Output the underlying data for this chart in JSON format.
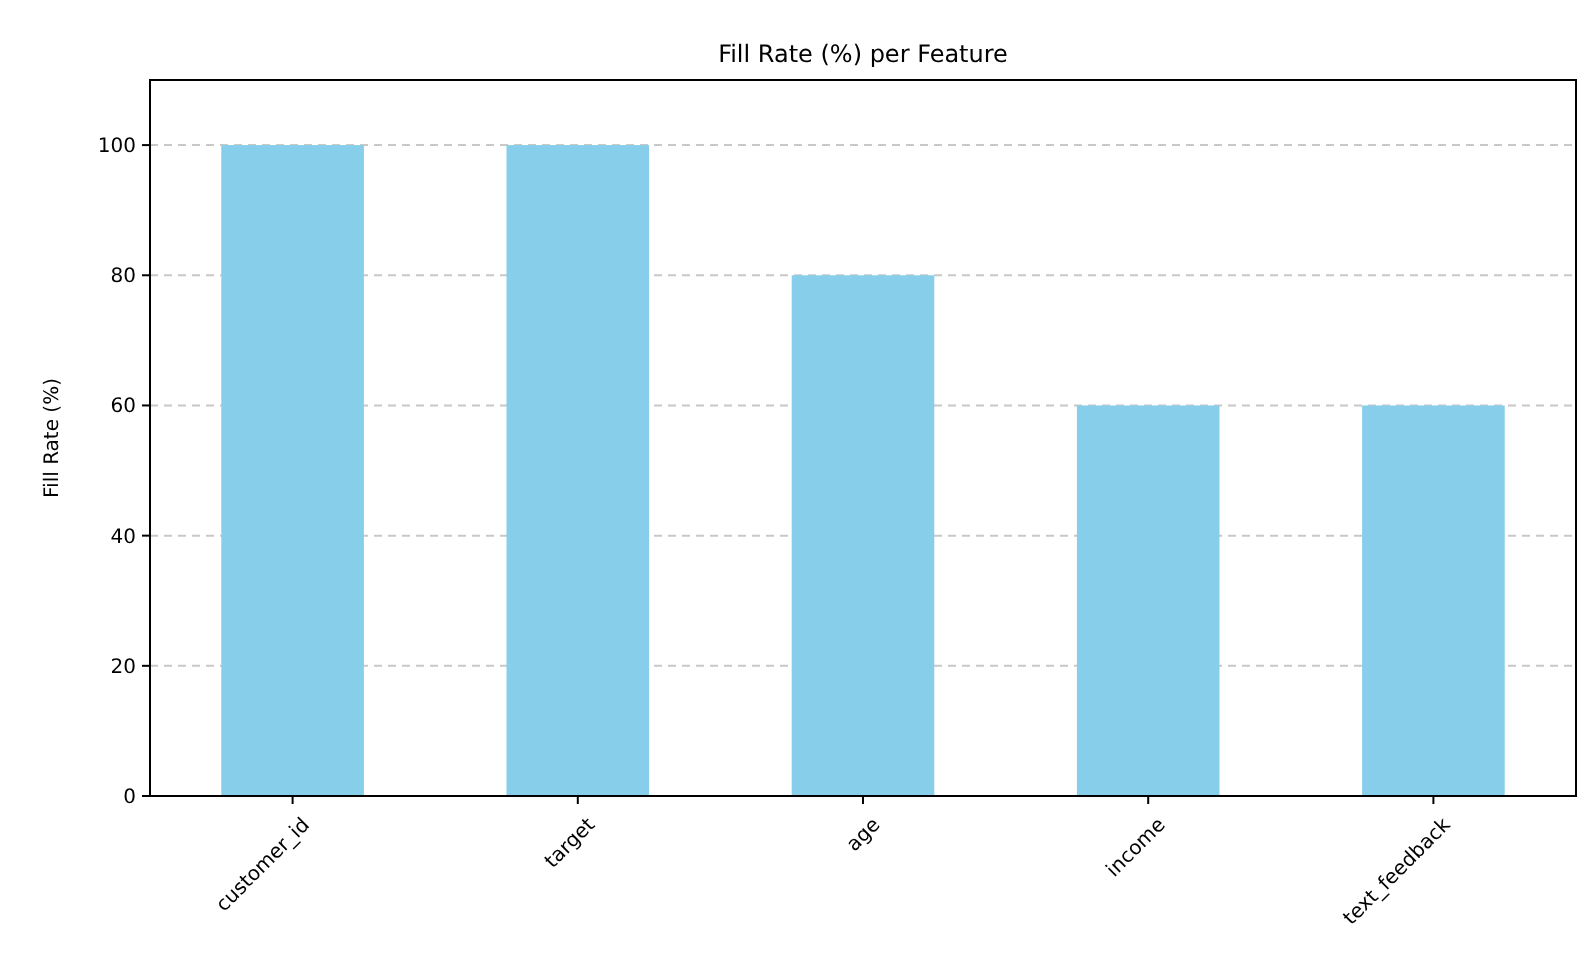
{
  "chart_data": {
    "type": "bar",
    "title": "Fill Rate (%) per Feature",
    "ylabel": "Fill Rate (%)",
    "categories": [
      "customer_id",
      "target",
      "age",
      "income",
      "text_feedback"
    ],
    "values": [
      100,
      100,
      80,
      60,
      60
    ],
    "color": "#87ceeb",
    "ylim": [
      0,
      110
    ],
    "yticks": [
      0,
      20,
      40,
      60,
      80,
      100
    ],
    "grid": "y"
  }
}
